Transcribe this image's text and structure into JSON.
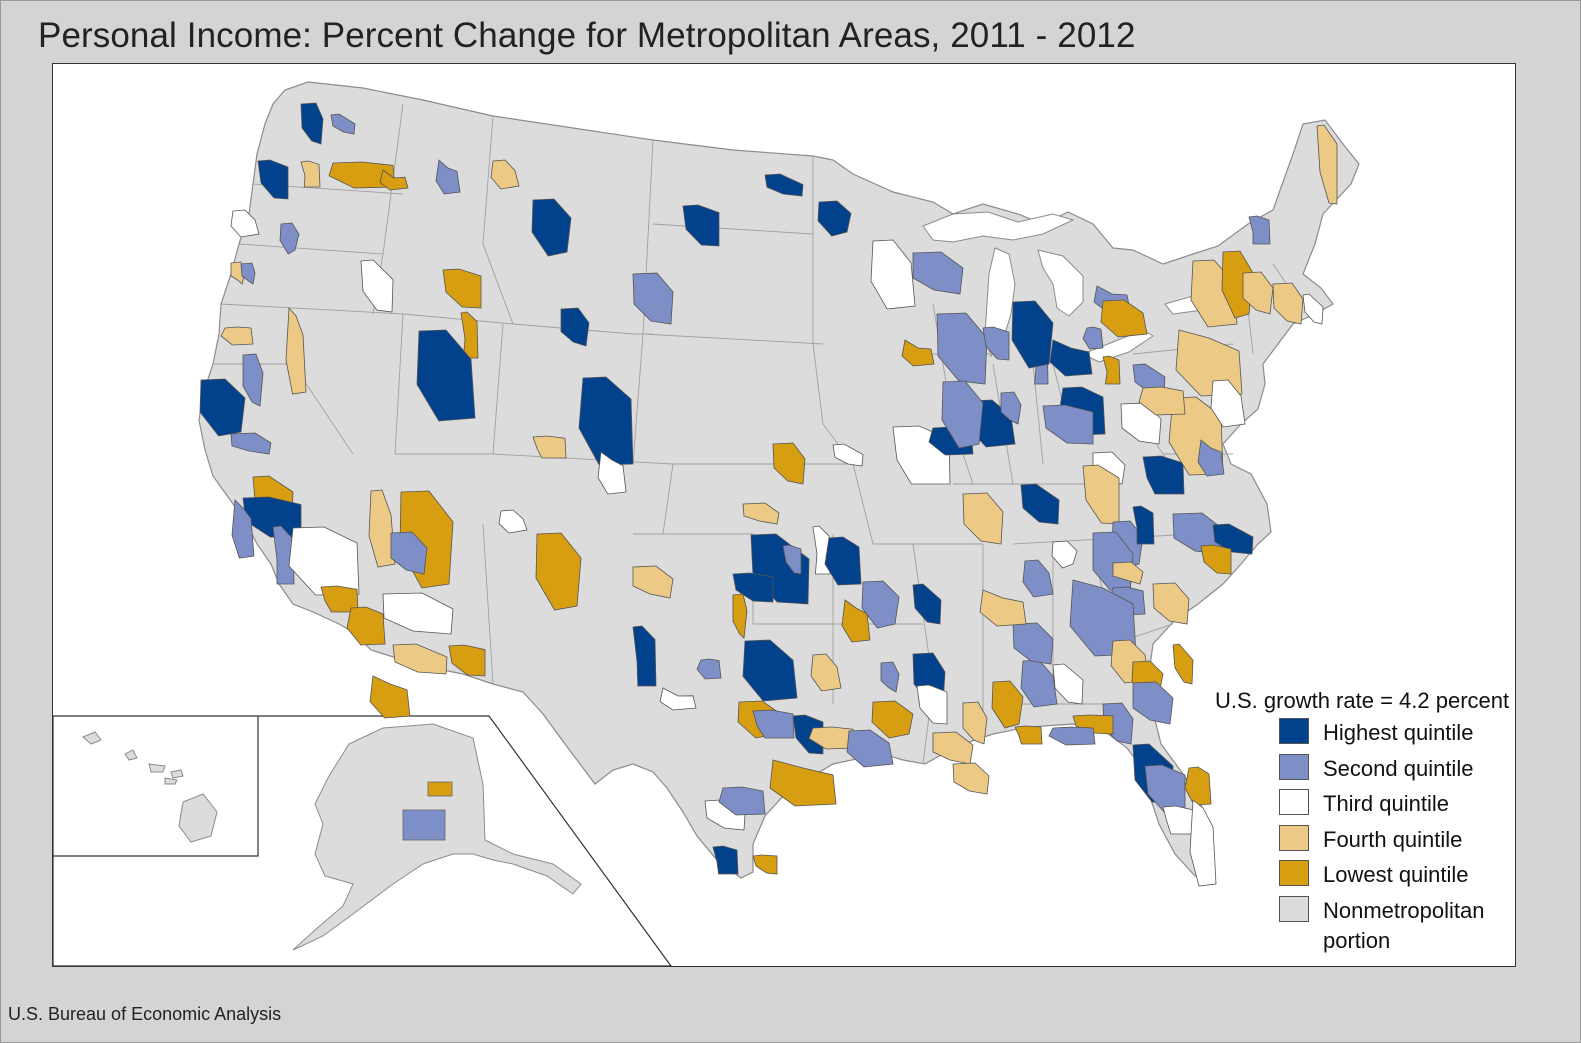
{
  "title": "Personal Income: Percent Change for Metropolitan Areas, 2011 - 2012",
  "source": "U.S. Bureau of Economic Analysis",
  "legend": {
    "title": "U.S. growth rate = 4.2 percent",
    "items": [
      {
        "label": "Highest quintile",
        "color": "#02418b"
      },
      {
        "label": "Second quintile",
        "color": "#7d8fc6"
      },
      {
        "label": "Third quintile",
        "color": "#ffffff"
      },
      {
        "label": "Fourth quintile",
        "color": "#ecc985"
      },
      {
        "label": "Lowest quintile",
        "color": "#d69e10"
      },
      {
        "label": "Nonmetropolitan portion",
        "color": "#dcdcdc"
      }
    ]
  },
  "colors": {
    "nonmetro": "#dcdcdc",
    "border": "#8c8c8c",
    "water": "#ffffff"
  },
  "regions": {
    "contiguous_us": "contiguous-us",
    "alaska": "alaska",
    "hawaii": "hawaii"
  }
}
